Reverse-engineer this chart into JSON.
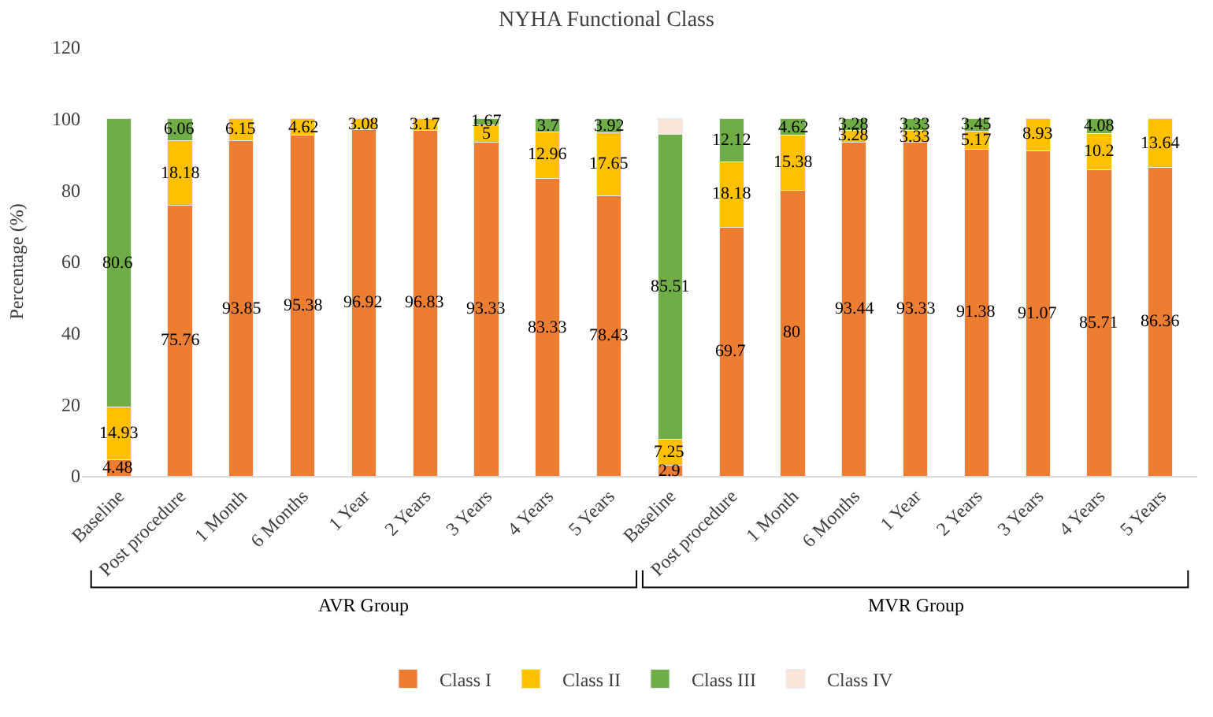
{
  "chart_data": {
    "type": "bar",
    "stacked": true,
    "title": "NYHA Functional Class",
    "ylabel": "Percentage (%)",
    "categories": [
      "Baseline",
      "Post procedure",
      "1 Month",
      "6 Months",
      "1 Year",
      "2 Years",
      "3 Years",
      "4 Years",
      "5 Years",
      "Baseline",
      "Post procedure",
      "1 Month",
      "6 Months",
      "1 Year",
      "2 Years",
      "3 Years",
      "4 Years",
      "5 Years"
    ],
    "series": [
      {
        "name": "Class I",
        "color": "#ed7d31",
        "values": [
          4.48,
          75.76,
          93.85,
          95.38,
          96.92,
          96.83,
          93.33,
          83.33,
          78.43,
          2.9,
          69.7,
          80,
          93.44,
          93.33,
          91.38,
          91.07,
          85.71,
          86.36
        ],
        "value_labels": [
          "4.48",
          "75.76",
          "93.85",
          "95.38",
          "96.92",
          "96.83",
          "93.33",
          "83.33",
          "78.43",
          "2.9",
          "69.7",
          "80",
          "93.44",
          "93.33",
          "91.38",
          "91.07",
          "85.71",
          "86.36"
        ]
      },
      {
        "name": "Class II",
        "color": "#ffc000",
        "values": [
          14.93,
          18.18,
          6.15,
          4.62,
          3.08,
          3.17,
          5,
          12.96,
          17.65,
          7.25,
          18.18,
          15.38,
          3.28,
          3.33,
          5.17,
          8.93,
          10.2,
          13.64
        ],
        "value_labels": [
          "14.93",
          "18.18",
          "6.15",
          "4.62",
          "3.08",
          "3.17",
          "5",
          "12.96",
          "17.65",
          "7.25",
          "18.18",
          "15.38",
          "3.28",
          "3.33",
          "5.17",
          "8.93",
          "10.2",
          "13.64"
        ]
      },
      {
        "name": "Class III",
        "color": "#70ad47",
        "values": [
          80.6,
          6.06,
          null,
          null,
          null,
          null,
          1.67,
          3.7,
          3.92,
          85.51,
          12.12,
          4.62,
          3.28,
          3.33,
          3.45,
          null,
          4.08,
          null
        ],
        "value_labels": [
          "80.6",
          "6.06",
          null,
          null,
          null,
          null,
          "1.67",
          "3.7",
          "3.92",
          "85.51",
          "12.12",
          "4.62",
          "3.28",
          "3.33",
          "3.45",
          null,
          "4.08",
          null
        ]
      },
      {
        "name": "Class IV",
        "color": "#fbe5d6",
        "values": [
          null,
          null,
          null,
          null,
          null,
          null,
          null,
          null,
          null,
          4.3,
          null,
          null,
          null,
          null,
          null,
          null,
          null,
          null
        ],
        "value_labels": [
          null,
          null,
          null,
          null,
          null,
          null,
          null,
          null,
          null,
          null,
          null,
          null,
          null,
          null,
          null,
          null,
          null,
          null
        ]
      }
    ],
    "ylim": [
      0,
      120
    ],
    "yticks": [
      0,
      20,
      40,
      60,
      80,
      100,
      120
    ],
    "grid": false,
    "legend": "bottom",
    "annotations": [
      "AVR Group",
      "MVR Group"
    ]
  }
}
